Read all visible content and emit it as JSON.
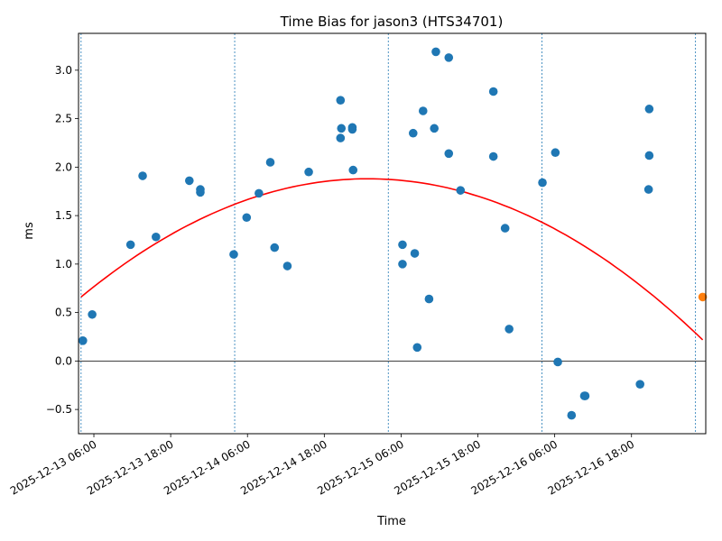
{
  "chart_data": {
    "type": "scatter",
    "title": "Time Bias for jason3 (HTS34701)",
    "xlabel": "Time",
    "ylabel": "ms",
    "xlim": [
      "2025-12-13 03:36",
      "2025-12-17 05:36"
    ],
    "ylim": [
      -0.75,
      3.38
    ],
    "y_ticks": [
      -0.5,
      0.0,
      0.5,
      1.0,
      1.5,
      2.0,
      2.5,
      3.0
    ],
    "y_tick_labels": [
      "−0.5",
      "0.0",
      "0.5",
      "1.0",
      "1.5",
      "2.0",
      "2.5",
      "3.0"
    ],
    "x_ticks": [
      "2025-12-13 06:00",
      "2025-12-13 18:00",
      "2025-12-14 06:00",
      "2025-12-14 18:00",
      "2025-12-15 06:00",
      "2025-12-15 18:00",
      "2025-12-16 06:00",
      "2025-12-16 18:00"
    ],
    "x_tick_labels": [
      "2025-12-13 06:00",
      "2025-12-13 18:00",
      "2025-12-14 06:00",
      "2025-12-14 18:00",
      "2025-12-15 06:00",
      "2025-12-15 18:00",
      "2025-12-16 06:00",
      "2025-12-16 18:00"
    ],
    "day_boundaries": [
      "2025-12-13 04:00",
      "2025-12-14 04:00",
      "2025-12-15 04:00",
      "2025-12-16 04:00",
      "2025-12-17 04:00"
    ],
    "zero_line": 0,
    "points_color": "#1f77b4",
    "fit_color": "#ff0000",
    "last_point_color": "#ff7f0e",
    "boundary_color": "#1f77b4",
    "points": [
      {
        "x": "2025-12-13 04:17",
        "y": 0.21
      },
      {
        "x": "2025-12-13 05:44",
        "y": 0.48
      },
      {
        "x": "2025-12-13 11:44",
        "y": 1.2
      },
      {
        "x": "2025-12-13 13:37",
        "y": 1.91
      },
      {
        "x": "2025-12-13 15:42",
        "y": 1.28
      },
      {
        "x": "2025-12-13 20:55",
        "y": 1.86
      },
      {
        "x": "2025-12-13 22:38",
        "y": 1.77
      },
      {
        "x": "2025-12-13 22:38",
        "y": 1.74
      },
      {
        "x": "2025-12-14 03:51",
        "y": 1.1
      },
      {
        "x": "2025-12-14 05:52",
        "y": 1.48
      },
      {
        "x": "2025-12-14 07:47",
        "y": 1.73
      },
      {
        "x": "2025-12-14 09:34",
        "y": 2.05
      },
      {
        "x": "2025-12-14 10:14",
        "y": 1.17
      },
      {
        "x": "2025-12-14 12:14",
        "y": 0.98
      },
      {
        "x": "2025-12-14 15:34",
        "y": 1.95
      },
      {
        "x": "2025-12-14 20:32",
        "y": 2.69
      },
      {
        "x": "2025-12-14 20:40",
        "y": 2.4
      },
      {
        "x": "2025-12-14 20:32",
        "y": 2.3
      },
      {
        "x": "2025-12-14 22:23",
        "y": 2.41
      },
      {
        "x": "2025-12-14 22:23",
        "y": 2.39
      },
      {
        "x": "2025-12-14 22:30",
        "y": 1.97
      },
      {
        "x": "2025-12-15 06:13",
        "y": 1.2
      },
      {
        "x": "2025-12-15 06:13",
        "y": 1.0
      },
      {
        "x": "2025-12-15 07:53",
        "y": 2.35
      },
      {
        "x": "2025-12-15 08:08",
        "y": 1.11
      },
      {
        "x": "2025-12-15 08:31",
        "y": 0.14
      },
      {
        "x": "2025-12-15 09:26",
        "y": 2.58
      },
      {
        "x": "2025-12-15 10:22",
        "y": 0.64
      },
      {
        "x": "2025-12-15 11:11",
        "y": 2.4
      },
      {
        "x": "2025-12-15 11:26",
        "y": 3.19
      },
      {
        "x": "2025-12-15 13:27",
        "y": 3.13
      },
      {
        "x": "2025-12-15 13:27",
        "y": 2.14
      },
      {
        "x": "2025-12-15 15:17",
        "y": 1.76
      },
      {
        "x": "2025-12-15 20:25",
        "y": 2.78
      },
      {
        "x": "2025-12-15 20:25",
        "y": 2.11
      },
      {
        "x": "2025-12-15 22:15",
        "y": 1.37
      },
      {
        "x": "2025-12-15 22:53",
        "y": 0.33
      },
      {
        "x": "2025-12-16 04:05",
        "y": 1.84
      },
      {
        "x": "2025-12-16 06:06",
        "y": 2.15
      },
      {
        "x": "2025-12-16 06:29",
        "y": -0.01
      },
      {
        "x": "2025-12-16 08:38",
        "y": -0.56
      },
      {
        "x": "2025-12-16 10:38",
        "y": -0.36
      },
      {
        "x": "2025-12-16 10:46",
        "y": -0.36
      },
      {
        "x": "2025-12-16 19:20",
        "y": -0.24
      },
      {
        "x": "2025-12-16 20:46",
        "y": 2.6
      },
      {
        "x": "2025-12-16 20:46",
        "y": 2.12
      },
      {
        "x": "2025-12-16 20:40",
        "y": 1.77
      }
    ],
    "last_point": {
      "x": "2025-12-17 05:07",
      "y": 0.66
    },
    "fit": {
      "type": "quadratic",
      "x_start": "2025-12-13 04:00",
      "x_end": "2025-12-17 05:07",
      "vertex_x": "2025-12-15 00:49",
      "vertex_y": 1.88,
      "y_at_start": 0.66
    }
  }
}
